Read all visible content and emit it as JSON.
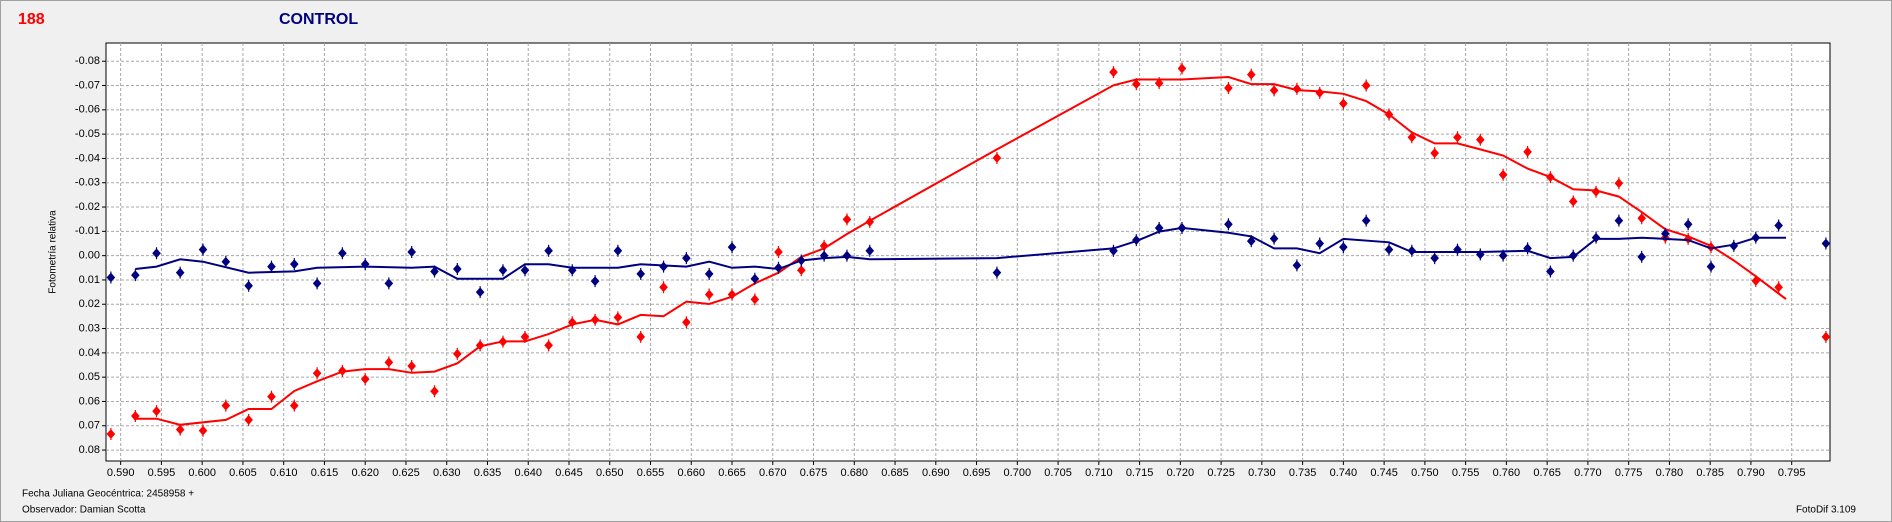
{
  "header": {
    "id": "188",
    "title": "CONTROL"
  },
  "footer": {
    "date_label": "Fecha Juliana Geocéntrica: 2458958 +",
    "observer": "Observador: Damian Scotta",
    "software": "FotoDif 3.109"
  },
  "chart_data": {
    "type": "scatter",
    "y_label": "Fotometría relativa",
    "xlim": [
      0.5882,
      0.7997
    ],
    "ylim": [
      -0.0875,
      0.0845
    ],
    "invert_y": true,
    "grid": true,
    "xticks": [
      {
        "value": 0.59,
        "label": "0.590"
      },
      0.595,
      {
        "value": 0.6,
        "label": "0.600"
      },
      0.605,
      {
        "value": 0.61,
        "label": "0.610"
      },
      0.615,
      {
        "value": 0.62,
        "label": "0.620"
      },
      0.625,
      {
        "value": 0.63,
        "label": "0.630"
      },
      0.635,
      {
        "value": 0.64,
        "label": "0.640"
      },
      0.645,
      {
        "value": 0.65,
        "label": "0.650"
      },
      0.655,
      {
        "value": 0.66,
        "label": "0.660"
      },
      0.665,
      {
        "value": 0.67,
        "label": "0.670"
      },
      0.675,
      {
        "value": 0.68,
        "label": "0.680"
      },
      0.685,
      {
        "value": 0.69,
        "label": "0.690"
      },
      0.695,
      {
        "value": 0.7,
        "label": "0.700"
      },
      0.705,
      {
        "value": 0.71,
        "label": "0.710"
      },
      0.715,
      {
        "value": 0.72,
        "label": "0.720"
      },
      0.725,
      {
        "value": 0.73,
        "label": "0.730"
      },
      0.735,
      {
        "value": 0.74,
        "label": "0.740"
      },
      0.745,
      {
        "value": 0.75,
        "label": "0.750"
      },
      0.755,
      {
        "value": 0.76,
        "label": "0.760"
      },
      0.765,
      {
        "value": 0.77,
        "label": "0.770"
      },
      0.775,
      {
        "value": 0.78,
        "label": "0.780"
      },
      0.785,
      {
        "value": 0.79,
        "label": "0.790"
      },
      0.795
    ],
    "yticks": [
      -0.08,
      -0.07,
      -0.06,
      -0.05,
      -0.04,
      -0.03,
      -0.02,
      -0.01,
      {
        "value": 0,
        "label": "0.00"
      },
      0.01,
      0.02,
      0.03,
      0.04,
      0.05,
      0.06,
      0.07,
      0.08
    ],
    "series": [
      {
        "color": "#ff0000",
        "x": [
          0.5888,
          0.5918,
          0.5944,
          0.5973,
          0.6001,
          0.6029,
          0.6057,
          0.6085,
          0.6113,
          0.6141,
          0.6172,
          0.62,
          0.6229,
          0.6257,
          0.6285,
          0.6313,
          0.6341,
          0.6369,
          0.6396,
          0.6425,
          0.6454,
          0.6482,
          0.651,
          0.6538,
          0.6566,
          0.6594,
          0.6622,
          0.665,
          0.6678,
          0.6707,
          0.6735,
          0.6763,
          0.6791,
          0.6819,
          0.6975,
          0.7118,
          0.7146,
          0.7174,
          0.7202,
          0.7259,
          0.7287,
          0.7315,
          0.7343,
          0.7371,
          0.74,
          0.7428,
          0.7456,
          0.7484,
          0.7512,
          0.754,
          0.7568,
          0.7596,
          0.7626,
          0.7654,
          0.7682,
          0.771,
          0.7738,
          0.7766,
          0.7795,
          0.7823,
          0.7851,
          0.7906,
          0.7934,
          0.7992
        ],
        "values": [
          0.0734,
          0.066,
          0.064,
          0.0716,
          0.072,
          0.0617,
          0.0676,
          0.058,
          0.0617,
          0.0484,
          0.0474,
          0.0508,
          0.0439,
          0.0454,
          0.0558,
          0.0404,
          0.0369,
          0.0354,
          0.0334,
          0.0369,
          0.0274,
          0.0264,
          0.0254,
          0.0334,
          0.013,
          0.0274,
          0.016,
          0.016,
          0.018,
          -0.0015,
          0.006,
          -0.004,
          -0.0149,
          -0.0139,
          -0.0402,
          -0.0755,
          -0.0706,
          -0.071,
          -0.077,
          -0.069,
          -0.0745,
          -0.068,
          -0.0686,
          -0.067,
          -0.0626,
          -0.07,
          -0.0581,
          -0.0487,
          -0.0422,
          -0.0487,
          -0.0477,
          -0.0333,
          -0.0427,
          -0.0323,
          -0.0223,
          -0.0263,
          -0.0298,
          -0.0154,
          -0.0074,
          -0.0069,
          -0.0035,
          0.0104,
          0.013,
          0.0334
        ],
        "fit_x": [
          0.5918,
          0.5944,
          0.5973,
          0.6029,
          0.6057,
          0.6085,
          0.6113,
          0.6141,
          0.6172,
          0.62,
          0.6229,
          0.6257,
          0.6285,
          0.6313,
          0.6341,
          0.6369,
          0.6396,
          0.6425,
          0.6454,
          0.6482,
          0.651,
          0.6538,
          0.6566,
          0.6594,
          0.6622,
          0.665,
          0.6678,
          0.6707,
          0.6735,
          0.6763,
          0.6791,
          0.6819,
          0.6975,
          0.7118,
          0.7146,
          0.7202,
          0.7259,
          0.7287,
          0.7315,
          0.7343,
          0.7371,
          0.74,
          0.7428,
          0.7456,
          0.7484,
          0.7512,
          0.754,
          0.7568,
          0.7596,
          0.7626,
          0.7654,
          0.7682,
          0.771,
          0.7738,
          0.7766,
          0.7795,
          0.7823,
          0.7851,
          0.7879,
          0.7906,
          0.7943
        ],
        "fit_values": [
          0.0671,
          0.0671,
          0.0696,
          0.0676,
          0.0631,
          0.0631,
          0.0557,
          0.0517,
          0.0477,
          0.0467,
          0.0467,
          0.0482,
          0.0477,
          0.0443,
          0.0373,
          0.0353,
          0.0353,
          0.0323,
          0.0283,
          0.0264,
          0.0283,
          0.0244,
          0.0249,
          0.0189,
          0.0199,
          0.0169,
          0.0114,
          0.007,
          0.0005,
          -0.003,
          -0.0089,
          -0.0144,
          -0.0437,
          -0.0701,
          -0.0725,
          -0.0725,
          -0.0735,
          -0.0706,
          -0.0706,
          -0.0681,
          -0.0676,
          -0.0666,
          -0.0636,
          -0.0581,
          -0.0507,
          -0.0462,
          -0.0462,
          -0.0437,
          -0.0412,
          -0.0358,
          -0.0323,
          -0.0273,
          -0.0268,
          -0.0243,
          -0.0179,
          -0.0109,
          -0.0079,
          -0.004,
          0.002,
          0.0085,
          0.0179
        ]
      },
      {
        "color": "#000080",
        "x": [
          0.5888,
          0.5918,
          0.5944,
          0.5973,
          0.6001,
          0.6029,
          0.6057,
          0.6085,
          0.6113,
          0.6141,
          0.6172,
          0.62,
          0.6229,
          0.6257,
          0.6285,
          0.6313,
          0.6341,
          0.6369,
          0.6396,
          0.6425,
          0.6454,
          0.6482,
          0.651,
          0.6538,
          0.6566,
          0.6594,
          0.6622,
          0.665,
          0.6678,
          0.6707,
          0.6735,
          0.6763,
          0.6791,
          0.6819,
          0.6975,
          0.7118,
          0.7146,
          0.7174,
          0.7202,
          0.7259,
          0.7287,
          0.7315,
          0.7343,
          0.7371,
          0.74,
          0.7428,
          0.7456,
          0.7484,
          0.7512,
          0.754,
          0.7568,
          0.7596,
          0.7626,
          0.7654,
          0.7682,
          0.771,
          0.7738,
          0.7766,
          0.7795,
          0.7823,
          0.7851,
          0.7879,
          0.7906,
          0.7934,
          0.7992
        ],
        "values": [
          0.009,
          0.008,
          -0.001,
          0.007,
          -0.0025,
          0.0025,
          0.0124,
          0.0045,
          0.0035,
          0.0114,
          -0.001,
          0.0035,
          0.0114,
          -0.0015,
          0.0065,
          0.0055,
          0.015,
          0.006,
          0.006,
          -0.002,
          0.006,
          0.0105,
          -0.002,
          0.0075,
          0.0045,
          0.001,
          0.0075,
          -0.0035,
          0.0095,
          0.005,
          0.002,
          0,
          0,
          -0.002,
          0.007,
          -0.002,
          -0.0064,
          -0.0114,
          -0.0114,
          -0.0129,
          -0.006,
          -0.007,
          0.004,
          -0.005,
          -0.0035,
          -0.0144,
          -0.0025,
          -0.002,
          0.001,
          -0.0025,
          -0.0005,
          0,
          -0.003,
          0.0065,
          0,
          -0.0074,
          -0.0144,
          0.0005,
          -0.009,
          -0.0129,
          0.0045,
          -0.004,
          -0.0074,
          -0.0124,
          -0.005
        ],
        "fit_x": [
          0.5918,
          0.5944,
          0.5973,
          0.6001,
          0.6057,
          0.6113,
          0.6141,
          0.62,
          0.6257,
          0.6285,
          0.6313,
          0.6369,
          0.6396,
          0.6425,
          0.6454,
          0.651,
          0.6538,
          0.6594,
          0.6622,
          0.665,
          0.6678,
          0.6707,
          0.6735,
          0.6763,
          0.6791,
          0.6819,
          0.6975,
          0.7118,
          0.7146,
          0.7174,
          0.7202,
          0.7259,
          0.7287,
          0.7315,
          0.7343,
          0.7371,
          0.74,
          0.7456,
          0.7484,
          0.754,
          0.7568,
          0.7626,
          0.7654,
          0.7682,
          0.771,
          0.7738,
          0.7766,
          0.7823,
          0.7851,
          0.7879,
          0.7906,
          0.7943
        ],
        "fit_values": [
          0.0055,
          0.0045,
          0.0015,
          0.0025,
          0.007,
          0.0065,
          0.005,
          0.0045,
          0.005,
          0.0045,
          0.0095,
          0.0095,
          0.0035,
          0.0035,
          0.005,
          0.005,
          0.0035,
          0.0045,
          0.0025,
          0.005,
          0.0045,
          0.0055,
          0.002,
          0.001,
          0.0005,
          0.0015,
          0.001,
          -0.003,
          -0.006,
          -0.0099,
          -0.0114,
          -0.0094,
          -0.0079,
          -0.003,
          -0.003,
          -0.001,
          -0.0069,
          -0.0055,
          -0.0015,
          -0.0015,
          -0.0015,
          -0.002,
          0.001,
          0.0005,
          -0.0069,
          -0.0069,
          -0.0074,
          -0.0064,
          -0.003,
          -0.0045,
          -0.0074,
          -0.0074
        ]
      }
    ]
  }
}
